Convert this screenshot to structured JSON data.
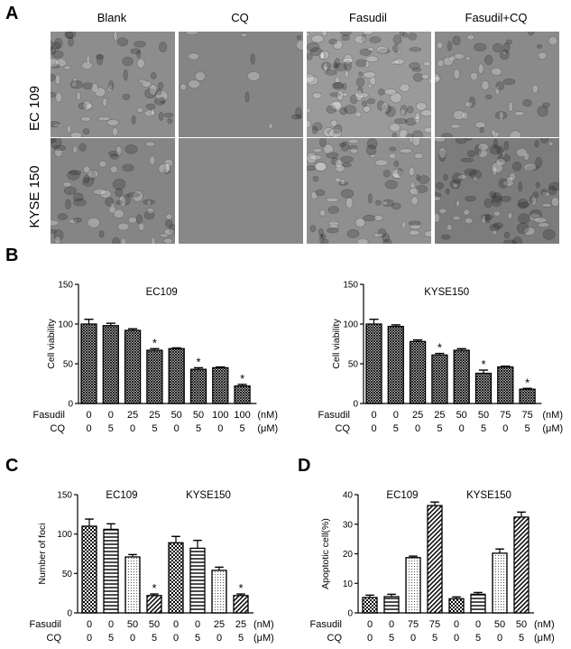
{
  "panels": {
    "A": "A",
    "B": "B",
    "C": "C",
    "D": "D"
  },
  "micrographs": {
    "columns": [
      "Blank",
      "CQ",
      "Fasudil",
      "Fasudil+CQ"
    ],
    "rows": [
      "EC 109",
      "KYSE 150"
    ]
  },
  "colors": {
    "bar_stroke": "#000000",
    "text": "#000000",
    "micro_bg": "#8a8a8a"
  },
  "chart_data": [
    {
      "panel": "B",
      "type": "bar",
      "title": "EC109",
      "ylabel": "Cell viability",
      "ylim": [
        0,
        150
      ],
      "yticks": [
        0,
        50,
        100,
        150
      ],
      "row_labels": [
        "Fasudil",
        "CQ"
      ],
      "units": [
        "(nM)",
        "(μM)"
      ],
      "fasudil": [
        "0",
        "0",
        "25",
        "25",
        "50",
        "50",
        "100",
        "100"
      ],
      "cq": [
        "0",
        "5",
        "0",
        "5",
        "0",
        "5",
        "0",
        "5"
      ],
      "values": [
        100,
        98,
        92,
        67,
        69,
        43,
        45,
        22
      ],
      "errors": [
        6,
        3,
        2,
        2,
        1,
        2,
        1,
        2
      ],
      "significant": [
        false,
        false,
        false,
        true,
        false,
        true,
        false,
        true
      ],
      "fill": "crosshatch"
    },
    {
      "panel": "B",
      "type": "bar",
      "title": "KYSE150",
      "ylabel": "Cell viability",
      "ylim": [
        0,
        150
      ],
      "yticks": [
        0,
        50,
        100,
        150
      ],
      "row_labels": [
        "Fasudil",
        "CQ"
      ],
      "units": [
        "(nM)",
        "(μM)"
      ],
      "fasudil": [
        "0",
        "0",
        "25",
        "25",
        "50",
        "50",
        "75",
        "75"
      ],
      "cq": [
        "0",
        "5",
        "0",
        "5",
        "0",
        "5",
        "0",
        "5"
      ],
      "values": [
        100,
        97,
        78,
        61,
        67,
        38,
        46,
        18
      ],
      "errors": [
        6,
        2,
        2,
        2,
        2,
        4,
        1,
        1
      ],
      "significant": [
        false,
        false,
        false,
        true,
        false,
        true,
        false,
        true
      ],
      "fill": "crosshatch"
    },
    {
      "panel": "C",
      "type": "bar",
      "ylabel": "Number of foci",
      "ylim": [
        0,
        150
      ],
      "yticks": [
        0,
        50,
        100,
        150
      ],
      "row_labels": [
        "Fasudil",
        "CQ"
      ],
      "units": [
        "(nM)",
        "(μM)"
      ],
      "groups": [
        {
          "title": "EC109",
          "fasudil": [
            "0",
            "0",
            "50",
            "50"
          ],
          "cq": [
            "0",
            "5",
            "0",
            "5"
          ],
          "values": [
            110,
            106,
            71,
            22
          ],
          "errors": [
            9,
            7,
            3,
            2
          ],
          "significant": [
            false,
            false,
            false,
            true
          ]
        },
        {
          "title": "KYSE150",
          "fasudil": [
            "0",
            "0",
            "25",
            "25"
          ],
          "cq": [
            "0",
            "5",
            "0",
            "5"
          ],
          "values": [
            89,
            82,
            54,
            22
          ],
          "errors": [
            8,
            10,
            4,
            2
          ],
          "significant": [
            false,
            false,
            false,
            true
          ]
        }
      ],
      "fills": [
        "checker",
        "hlines",
        "dots",
        "diag"
      ]
    },
    {
      "panel": "D",
      "type": "bar",
      "ylabel": "Apoptotic cell(%)",
      "ylim": [
        0,
        40
      ],
      "yticks": [
        0,
        10,
        20,
        30,
        40
      ],
      "row_labels": [
        "Fasudil",
        "CQ"
      ],
      "units": [
        "(nM)",
        "(μM)"
      ],
      "groups": [
        {
          "title": "EC109",
          "fasudil": [
            "0",
            "0",
            "75",
            "75"
          ],
          "cq": [
            "0",
            "5",
            "0",
            "5"
          ],
          "values": [
            5.2,
            5.5,
            18.7,
            36.3
          ],
          "errors": [
            0.8,
            0.8,
            0.5,
            1.2
          ],
          "significant": [
            false,
            false,
            false,
            false
          ]
        },
        {
          "title": "KYSE150",
          "fasudil": [
            "0",
            "0",
            "50",
            "50"
          ],
          "cq": [
            "0",
            "5",
            "0",
            "5"
          ],
          "values": [
            4.8,
            6.3,
            20.2,
            32.4
          ],
          "errors": [
            0.6,
            0.6,
            1.4,
            1.7
          ],
          "significant": [
            false,
            false,
            false,
            false
          ]
        }
      ],
      "fills": [
        "checker",
        "hlines",
        "dots",
        "diag"
      ]
    }
  ]
}
